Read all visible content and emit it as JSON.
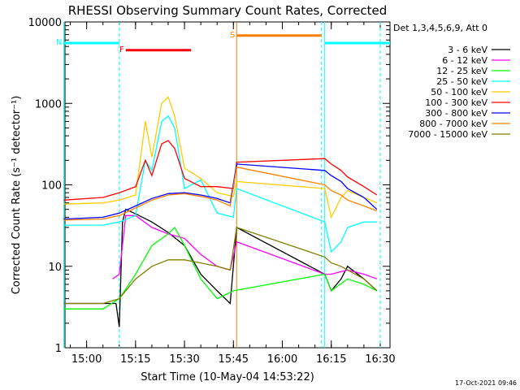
{
  "chart_data": {
    "type": "line",
    "title": "RHESSI Observing Summary Count Rates, Corrected",
    "xlabel": "Start Time (10-May-04 14:53:22)",
    "ylabel": "Corrected Count Rate (s⁻¹ detector⁻¹)",
    "yscale": "log",
    "ylim": [
      1,
      10000
    ],
    "xlim": [
      "14:53:22",
      "16:33:00"
    ],
    "x_ticks": [
      "15:00",
      "15:15",
      "15:30",
      "15:45",
      "16:00",
      "16:15",
      "16:30"
    ],
    "y_ticks": [
      "1",
      "10",
      "100",
      "1000",
      "10000"
    ],
    "legend_title": "Det 1,3,4,5,6,9, Att 0",
    "legend_position": "right",
    "series": [
      {
        "name": "3 - 6 keV",
        "color": "#000000",
        "x": [
          "14:53",
          "15:05",
          "15:09",
          "15:10",
          "15:11",
          "15:12",
          "15:15",
          "15:20",
          "15:25",
          "15:30",
          "15:35",
          "15:40",
          "15:44",
          "15:46",
          "16:13",
          "16:15",
          "16:18",
          "16:20",
          "16:25",
          "16:29"
        ],
        "values": [
          3.5,
          3.5,
          3.5,
          1.8,
          35,
          50,
          44,
          35,
          26,
          18,
          8,
          5,
          3.5,
          30,
          8,
          5,
          7,
          10,
          7,
          5
        ]
      },
      {
        "name": "6 - 12 keV",
        "color": "#ff00ff",
        "x": [
          "15:08",
          "15:10",
          "15:12",
          "15:15",
          "15:20",
          "15:25",
          "15:30",
          "15:35",
          "15:40",
          "15:44",
          "15:46",
          "16:13",
          "16:15",
          "16:20",
          "16:25",
          "16:29"
        ],
        "values": [
          7,
          8,
          42,
          42,
          30,
          25,
          22,
          14,
          10,
          9,
          20,
          8,
          8,
          9,
          8,
          7
        ]
      },
      {
        "name": "12 - 25 keV",
        "color": "#00ff00",
        "x": [
          "14:53",
          "15:05",
          "15:10",
          "15:15",
          "15:20",
          "15:25",
          "15:27",
          "15:30",
          "15:35",
          "15:40",
          "15:45",
          "16:13",
          "16:15",
          "16:20",
          "16:25",
          "16:29"
        ],
        "values": [
          3,
          3,
          4,
          8,
          18,
          25,
          30,
          18,
          7,
          4,
          5,
          8,
          5,
          7,
          6,
          5
        ]
      },
      {
        "name": "25 - 50 keV",
        "color": "#00ffff",
        "x": [
          "14:53",
          "15:05",
          "15:10",
          "15:15",
          "15:18",
          "15:20",
          "15:23",
          "15:25",
          "15:27",
          "15:30",
          "15:35",
          "15:40",
          "15:45",
          "15:46",
          "16:13",
          "16:15",
          "16:18",
          "16:20",
          "16:25",
          "16:29"
        ],
        "values": [
          32,
          32,
          35,
          42,
          200,
          150,
          600,
          700,
          500,
          90,
          115,
          45,
          40,
          90,
          35,
          15,
          20,
          30,
          35,
          35
        ]
      },
      {
        "name": "50 - 100 keV",
        "color": "#ffcc00",
        "x": [
          "14:53",
          "15:05",
          "15:10",
          "15:15",
          "15:18",
          "15:20",
          "15:23",
          "15:25",
          "15:27",
          "15:30",
          "15:35",
          "15:40",
          "15:45",
          "15:46",
          "16:13",
          "16:15",
          "16:18",
          "16:20",
          "16:25",
          "16:29"
        ],
        "values": [
          58,
          60,
          65,
          75,
          600,
          220,
          1000,
          1200,
          700,
          160,
          120,
          80,
          72,
          110,
          90,
          40,
          70,
          85,
          70,
          60
        ]
      },
      {
        "name": "100 - 300 keV",
        "color": "#ff0000",
        "x": [
          "14:53",
          "15:05",
          "15:10",
          "15:15",
          "15:18",
          "15:20",
          "15:23",
          "15:25",
          "15:27",
          "15:30",
          "15:35",
          "15:40",
          "15:45",
          "15:46",
          "16:13",
          "16:15",
          "16:18",
          "16:20",
          "16:25",
          "16:29"
        ],
        "values": [
          65,
          70,
          80,
          95,
          200,
          130,
          320,
          350,
          280,
          120,
          95,
          95,
          90,
          190,
          210,
          180,
          150,
          125,
          95,
          75
        ]
      },
      {
        "name": "300 - 800 keV",
        "color": "#0000ff",
        "x": [
          "14:53",
          "15:05",
          "15:10",
          "15:15",
          "15:20",
          "15:25",
          "15:30",
          "15:35",
          "15:40",
          "15:44",
          "15:46",
          "16:13",
          "16:15",
          "16:18",
          "16:20",
          "16:25",
          "16:29"
        ],
        "values": [
          38,
          40,
          45,
          55,
          68,
          78,
          80,
          75,
          68,
          60,
          180,
          150,
          130,
          110,
          90,
          70,
          50
        ]
      },
      {
        "name": "800 - 7000 keV",
        "color": "#ff8000",
        "x": [
          "14:53",
          "15:05",
          "15:10",
          "15:15",
          "15:20",
          "15:25",
          "15:30",
          "15:35",
          "15:40",
          "15:44",
          "15:46",
          "16:13",
          "16:15",
          "16:18",
          "16:20",
          "16:25",
          "16:29"
        ],
        "values": [
          37,
          38,
          42,
          52,
          65,
          75,
          78,
          72,
          65,
          55,
          165,
          100,
          85,
          75,
          65,
          55,
          48
        ]
      },
      {
        "name": "7000 - 15000 keV",
        "color": "#808000",
        "x": [
          "14:53",
          "15:05",
          "15:10",
          "15:15",
          "15:20",
          "15:25",
          "15:30",
          "15:35",
          "15:40",
          "15:44",
          "15:46",
          "16:13",
          "16:15",
          "16:18",
          "16:20",
          "16:25",
          "16:29"
        ],
        "values": [
          3.5,
          3.5,
          4,
          7,
          10,
          12,
          12,
          11,
          10,
          9,
          30,
          13,
          11,
          10,
          9,
          7,
          5
        ]
      }
    ],
    "annotations": [
      {
        "label": "N",
        "color": "#00ffff",
        "y": 5500,
        "x_start": "14:53",
        "x_end": "15:10"
      },
      {
        "label": "F",
        "color": "#ff0000",
        "y": 4500,
        "x_start": "15:12",
        "x_end": "15:32"
      },
      {
        "label": "S",
        "color": "#ff8000",
        "y": 6800,
        "x_start": "15:46",
        "x_end": "16:12"
      },
      {
        "label": "",
        "color": "#00ffff",
        "y": 5500,
        "x_start": "16:13",
        "x_end": "16:33"
      }
    ],
    "vertical_markers": [
      {
        "x": "14:53",
        "color": "#00ffff",
        "style": "solid"
      },
      {
        "x": "15:10",
        "color": "#00ffff",
        "style": "dashed"
      },
      {
        "x": "15:46",
        "color": "#ff8000",
        "style": "solid"
      },
      {
        "x": "16:12",
        "color": "#00ffff",
        "style": "dashed"
      },
      {
        "x": "16:13",
        "color": "#00ffff",
        "style": "solid"
      },
      {
        "x": "16:30",
        "color": "#00ffff",
        "style": "dashed"
      }
    ],
    "footer": "17-Oct-2021 09:46"
  }
}
